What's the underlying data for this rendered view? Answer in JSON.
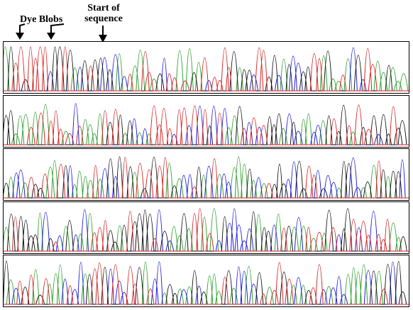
{
  "annotations": {
    "dye_blobs": "Dye Blobs",
    "start_line1": "Start of",
    "start_line2": "sequence"
  },
  "colors": {
    "channel_A": "#2ca02c",
    "channel_C": "#1a1adc",
    "channel_G": "#111111",
    "channel_T": "#d42020"
  },
  "chart_data": {
    "type": "line",
    "description_kind": "sanger-sequencing-electropherogram",
    "panels": 5,
    "channels": [
      "A",
      "C",
      "G",
      "T"
    ],
    "grid": false,
    "legend": "none"
  }
}
